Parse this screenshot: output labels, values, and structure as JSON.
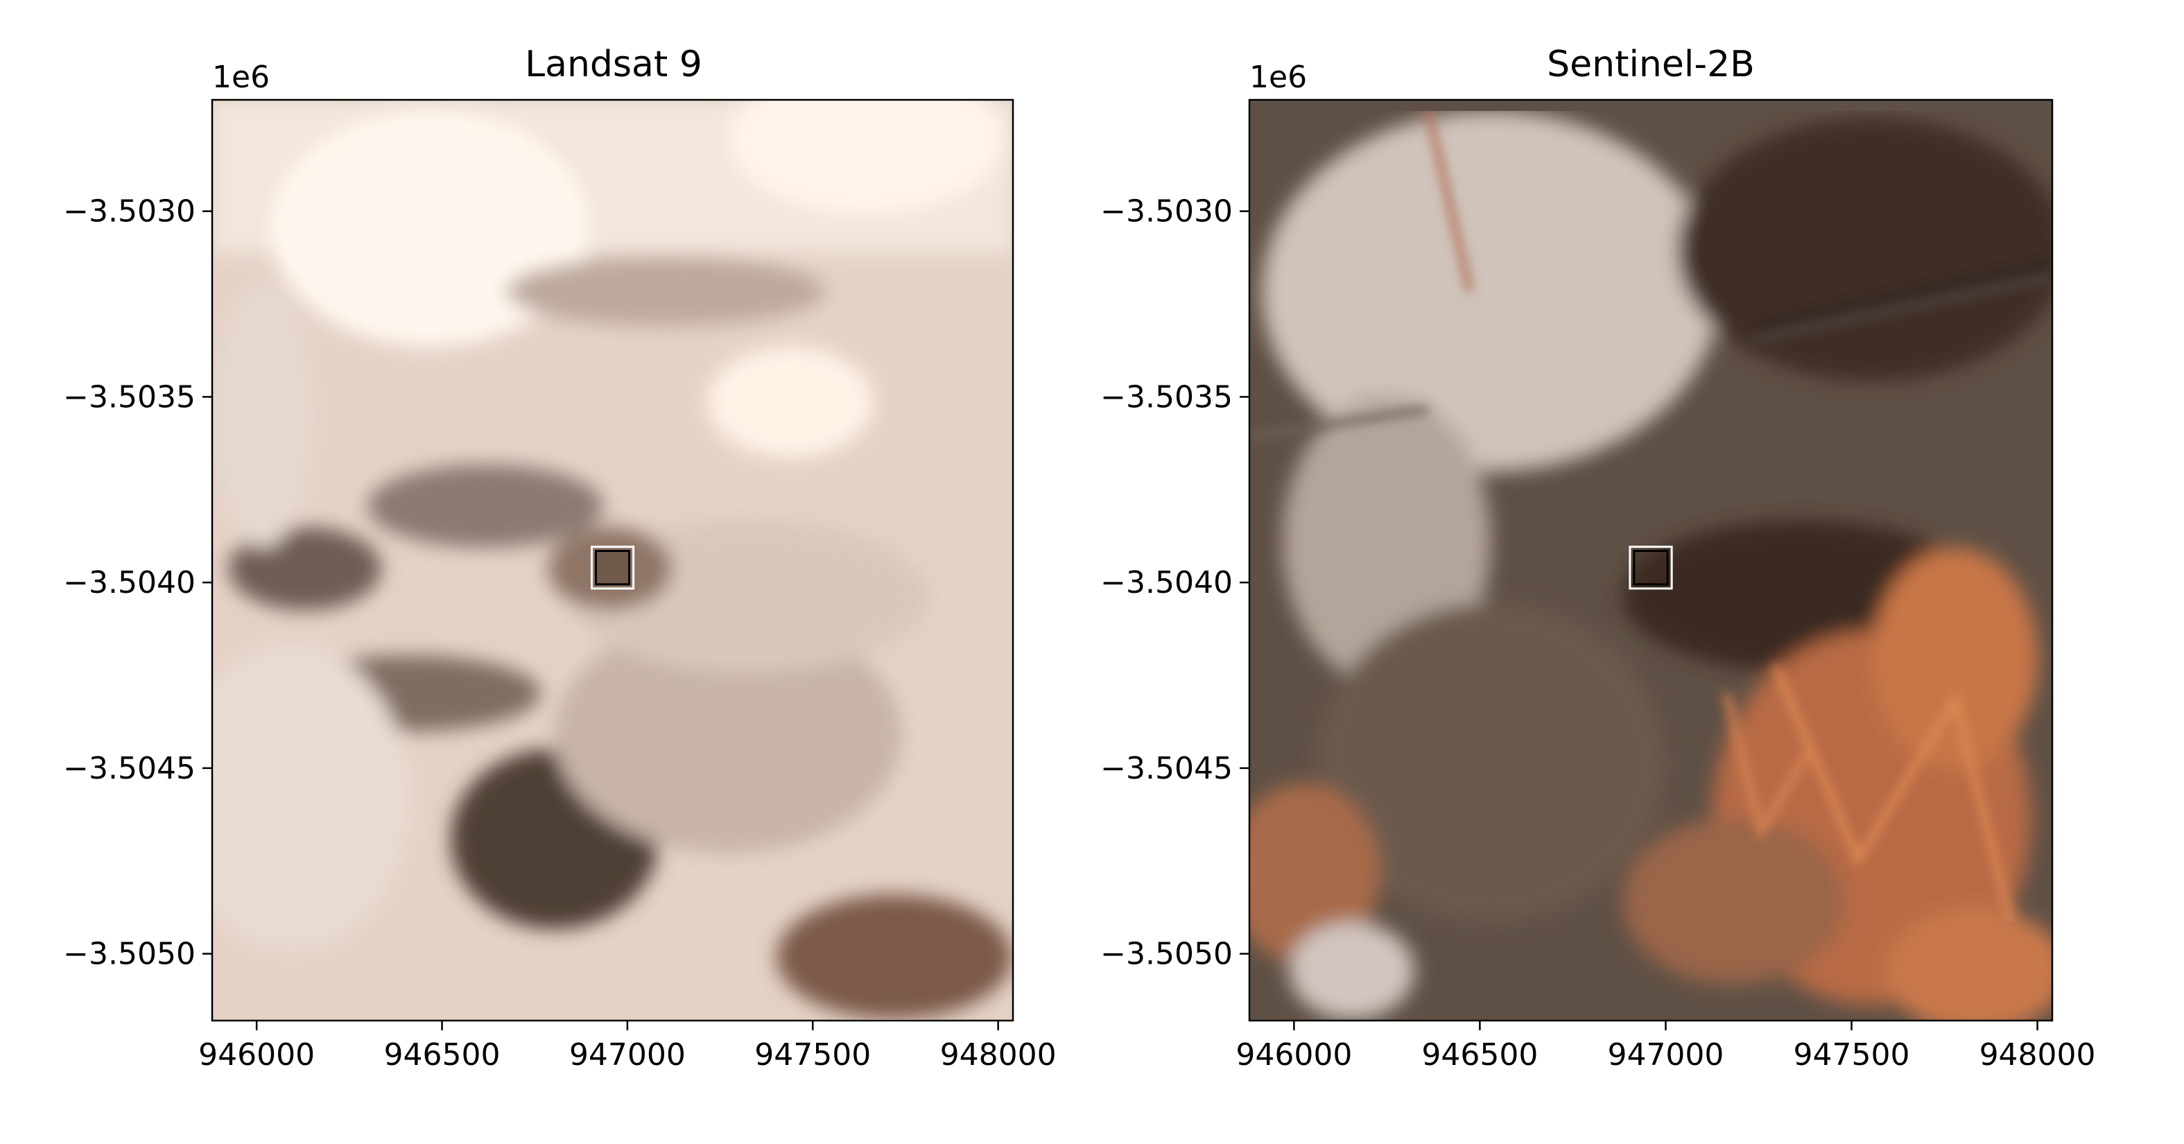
{
  "chart_data": [
    {
      "type": "heatmap",
      "title": "Landsat 9",
      "xlabel": "",
      "ylabel": "",
      "xlim": [
        945880,
        948040
      ],
      "ylim": [
        -3505180,
        -3502700
      ],
      "xticks": [
        946000,
        946500,
        947000,
        947500,
        948000
      ],
      "xtick_labels": [
        "946000",
        "946500",
        "947000",
        "947500",
        "948000"
      ],
      "yticks": [
        -3503000,
        -3503500,
        -3504000,
        -3504500,
        -3505000
      ],
      "ytick_labels": [
        "−3.5030",
        "−3.5035",
        "−3.5040",
        "−3.5045",
        "−3.5050"
      ],
      "y_offset_label": "1e6",
      "grid": false,
      "marker": {
        "shape": "square",
        "center": [
          946960,
          -3503960
        ],
        "half_size": 45
      },
      "image_palette": [
        "#f2e1d4",
        "#d9c4b6",
        "#bfa99c",
        "#8f7a6e",
        "#5e4c42",
        "#fff4ea"
      ]
    },
    {
      "type": "heatmap",
      "title": "Sentinel-2B",
      "xlabel": "",
      "ylabel": "",
      "xlim": [
        945880,
        948040
      ],
      "ylim": [
        -3505180,
        -3502700
      ],
      "xticks": [
        946000,
        946500,
        947000,
        947500,
        948000
      ],
      "xtick_labels": [
        "946000",
        "946500",
        "947000",
        "947500",
        "948000"
      ],
      "yticks": [
        -3503000,
        -3503500,
        -3504000,
        -3504500,
        -3505000
      ],
      "ytick_labels": [
        "−3.5030",
        "−3.5035",
        "−3.5040",
        "−3.5045",
        "−3.5050"
      ],
      "y_offset_label": "1e6",
      "grid": false,
      "marker": {
        "shape": "square",
        "center": [
          946960,
          -3503960
        ],
        "half_size": 45
      },
      "image_palette": [
        "#6b5a4c",
        "#4a3a30",
        "#b9a89a",
        "#d8cec6",
        "#c8734a",
        "#e2895a"
      ]
    }
  ]
}
